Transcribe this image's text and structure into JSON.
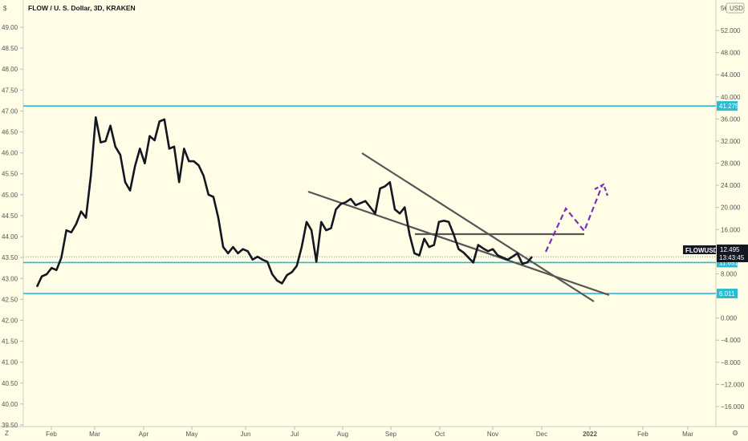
{
  "title": "FLOW / U. S. Dollar, 3D, KRAKEN",
  "currency": "USD",
  "symbol": "FLOWUSD",
  "last_price": "12.495",
  "countdown": "13:43:45",
  "right_axis_top": "5€",
  "colors": {
    "background": "#fffde6",
    "price_line": "#131722",
    "level_line": "#2bbcd3",
    "trend_line": "#555555",
    "projection": "#7b2fbe",
    "label_dark": "#131722"
  },
  "chart_data": {
    "type": "line",
    "series": [
      {
        "values": [
          42.8,
          43.05,
          43.1,
          43.25,
          43.2,
          43.5,
          44.15,
          44.1,
          44.3,
          44.6,
          44.45,
          45.45,
          46.85,
          46.25,
          46.28,
          46.65,
          46.15,
          45.95,
          45.3,
          45.1,
          45.68,
          46.1,
          45.75,
          46.4,
          46.3,
          46.75,
          46.8,
          46.1,
          46.15,
          45.3,
          46.1,
          45.8,
          45.8,
          45.7,
          45.45,
          45.0,
          44.95,
          44.45,
          43.75,
          43.6,
          43.75,
          43.6,
          43.7,
          43.65,
          43.45,
          43.52,
          43.45,
          43.4,
          43.1,
          42.95,
          42.88,
          43.08,
          43.15,
          43.3,
          43.75,
          44.35,
          44.15,
          43.4,
          44.35,
          44.15,
          44.2,
          44.65,
          44.78,
          44.82,
          44.9,
          44.75,
          44.8,
          44.85,
          44.7,
          44.55,
          45.15,
          45.2,
          45.3,
          44.65,
          44.55,
          44.7,
          44.05,
          43.6,
          43.55,
          43.95,
          43.75,
          43.8,
          44.35,
          44.38,
          44.35,
          44.05,
          43.7,
          43.62,
          43.5,
          43.38,
          43.8,
          43.72,
          43.65,
          43.7,
          43.55,
          43.5,
          43.45,
          43.52,
          43.6,
          43.35,
          43.38,
          43.52
        ],
        "colour": "#131722"
      }
    ],
    "left_axis": {
      "min": 39.5,
      "max": 49.0,
      "ticks": [
        "49.00",
        "48.50",
        "48.00",
        "47.50",
        "47.00",
        "46.50",
        "46.00",
        "45.50",
        "45.00",
        "44.50",
        "44.00",
        "43.50",
        "43.00",
        "42.50",
        "42.00",
        "41.50",
        "41.00",
        "40.50",
        "40.00",
        "39.50"
      ]
    },
    "right_axis": {
      "min": -18.0,
      "max": 56.0,
      "ticks": [
        "52.000",
        "48.000",
        "44.000",
        "40.000",
        "36.000",
        "32.000",
        "28.000",
        "24.000",
        "20.000",
        "16.000",
        "12.000",
        "8.000",
        "4.000",
        "0.000",
        "−4.000",
        "−8.000",
        "−12.000",
        "−16.000"
      ],
      "tick_values": [
        52,
        48,
        44,
        40,
        36,
        32,
        28,
        24,
        20,
        16,
        12,
        8,
        4,
        0,
        -4,
        -8,
        -12,
        -16
      ]
    },
    "x_axis": {
      "months": [
        "Feb",
        "Mar",
        "Apr",
        "May",
        "Jun",
        "Jul",
        "Aug",
        "Sep",
        "Oct",
        "Nov",
        "Dec",
        "2022",
        "Feb",
        "Mar"
      ]
    },
    "horizontal_levels": [
      {
        "value": 47.12,
        "label": "41.275"
      },
      {
        "value": 43.38,
        "label": "11.651"
      },
      {
        "value": 42.64,
        "label": "6.011"
      }
    ],
    "last_value": 43.52,
    "grid": false,
    "legend": "none"
  }
}
